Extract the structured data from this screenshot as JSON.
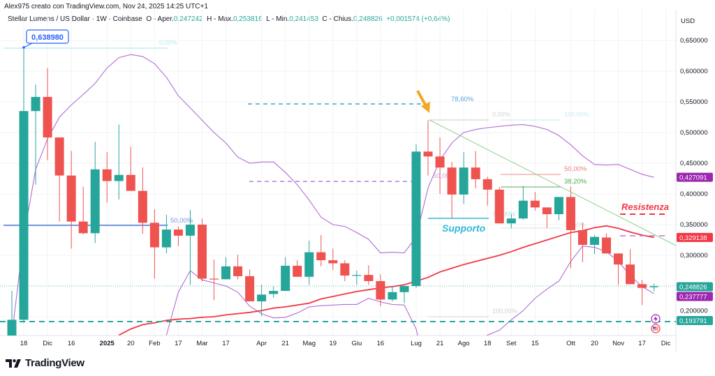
{
  "header": {
    "attribution": "Alex975 creato con TradingView.com, Nov 24, 2025 14:25 UTC+1"
  },
  "legend": {
    "symbol": "Stellar Lumens / US Dollar · 1W · Coinbase",
    "open_label": "O - Aper.",
    "open": "0,247242",
    "high_label": "H - Max.",
    "high": "0,253816",
    "low_label": "L - Min.",
    "low": "0,241453",
    "close_label": "C - Chius.",
    "close": "0,248826",
    "change": "+0,001574 (+0,64%)"
  },
  "colors": {
    "up": "#26a69a",
    "down": "#ef5350",
    "bands": "#b46bd6",
    "ma": "#f23645",
    "trend": "#8fd18a"
  },
  "annotations": {
    "high_callout": "0,638980",
    "fib1_0": "0,00%",
    "fib1_50": "50,00%",
    "fib_786": "78,60%",
    "fib2_0": "0,00%",
    "fib2_100": "100,00%",
    "fib2_50_purple": "50,00%",
    "fib3_50": "50,00%",
    "fib3_382": "38,20%",
    "fib2_mid": "50,00%",
    "fib3_low": "23,60%",
    "fib2_100_low": "100,00%",
    "support": "Supporto",
    "resistance": "Resistenza"
  },
  "price_axis": {
    "currency": "USD",
    "ticks": [
      "0,650000",
      "0,600000",
      "0,550000",
      "0,500000",
      "0,450000",
      "0,400000",
      "0,350000",
      "0,300000",
      "0,200000"
    ],
    "tick_values": [
      0.65,
      0.6,
      0.55,
      0.5,
      0.45,
      0.4,
      0.35,
      0.3,
      0.2
    ],
    "markers": [
      {
        "label": "0,427091",
        "value": 0.427091,
        "color": "#9c27b0"
      },
      {
        "label": "0,329138",
        "value": 0.329138,
        "color": "#f23645"
      },
      {
        "label": "0,248826",
        "value": 0.248826,
        "color": "#26a69a"
      },
      {
        "label": "0,237777",
        "value": 0.237777,
        "color": "#9c27b0"
      },
      {
        "label": "0,193791",
        "value": 0.193791,
        "color": "#26a69a"
      }
    ]
  },
  "time_axis": {
    "labels": [
      "18",
      "Dic",
      "16",
      "2025",
      "20",
      "Feb",
      "17",
      "Mar",
      "17",
      "Apr",
      "21",
      "Mag",
      "19",
      "Giu",
      "16",
      "Lug",
      "21",
      "Ago",
      "18",
      "Set",
      "15",
      "Ott",
      "20",
      "Nov",
      "17",
      "Dic"
    ],
    "label_dates": [
      "2024-11-18",
      "2024-12-02",
      "2024-12-16",
      "2025-01-06",
      "2025-01-20",
      "2025-02-03",
      "2025-02-17",
      "2025-03-03",
      "2025-03-17",
      "2025-04-07",
      "2025-04-21",
      "2025-05-05",
      "2025-05-19",
      "2025-06-02",
      "2025-06-16",
      "2025-07-07",
      "2025-07-21",
      "2025-08-04",
      "2025-08-18",
      "2025-09-01",
      "2025-09-15",
      "2025-10-06",
      "2025-10-20",
      "2025-11-03",
      "2025-11-17",
      "2025-12-01"
    ]
  },
  "footer": {
    "brand": "TradingView"
  },
  "chart_data": {
    "type": "candlestick",
    "interval": "1W",
    "ylim": [
      0.17,
      0.67
    ],
    "y_unit": "USD",
    "grid": true,
    "candles_fields": [
      "date",
      "open",
      "high",
      "low",
      "close"
    ],
    "candles": [
      [
        "2024-11-11",
        0.12,
        0.242,
        0.09,
        0.195
      ],
      [
        "2024-11-18",
        0.195,
        0.639,
        0.19,
        0.535
      ],
      [
        "2024-11-25",
        0.535,
        0.578,
        0.415,
        0.558
      ],
      [
        "2024-12-02",
        0.558,
        0.605,
        0.455,
        0.492
      ],
      [
        "2024-12-09",
        0.492,
        0.492,
        0.355,
        0.43
      ],
      [
        "2024-12-16",
        0.43,
        0.47,
        0.311,
        0.355
      ],
      [
        "2024-12-23",
        0.355,
        0.412,
        0.334,
        0.336
      ],
      [
        "2024-12-30",
        0.336,
        0.485,
        0.32,
        0.44
      ],
      [
        "2025-01-06",
        0.44,
        0.468,
        0.386,
        0.421
      ],
      [
        "2025-01-13",
        0.421,
        0.513,
        0.391,
        0.431
      ],
      [
        "2025-01-20",
        0.431,
        0.477,
        0.405,
        0.405
      ],
      [
        "2025-01-27",
        0.405,
        0.443,
        0.335,
        0.353
      ],
      [
        "2025-02-03",
        0.353,
        0.375,
        0.262,
        0.313
      ],
      [
        "2025-02-10",
        0.313,
        0.366,
        0.303,
        0.342
      ],
      [
        "2025-02-17",
        0.342,
        0.347,
        0.315,
        0.332
      ],
      [
        "2025-02-24",
        0.332,
        0.374,
        0.252,
        0.35
      ],
      [
        "2025-03-03",
        0.35,
        0.36,
        0.258,
        0.262
      ],
      [
        "2025-03-10",
        0.262,
        0.293,
        0.227,
        0.261
      ],
      [
        "2025-03-17",
        0.261,
        0.297,
        0.261,
        0.282
      ],
      [
        "2025-03-24",
        0.282,
        0.301,
        0.261,
        0.266
      ],
      [
        "2025-03-31",
        0.266,
        0.277,
        0.225,
        0.225
      ],
      [
        "2025-04-07",
        0.225,
        0.252,
        0.201,
        0.236
      ],
      [
        "2025-04-14",
        0.237,
        0.249,
        0.231,
        0.242
      ],
      [
        "2025-04-21",
        0.242,
        0.297,
        0.242,
        0.283
      ],
      [
        "2025-04-28",
        0.283,
        0.292,
        0.265,
        0.265
      ],
      [
        "2025-05-05",
        0.265,
        0.324,
        0.252,
        0.305
      ],
      [
        "2025-05-12",
        0.305,
        0.333,
        0.282,
        0.292
      ],
      [
        "2025-05-19",
        0.292,
        0.311,
        0.276,
        0.287
      ],
      [
        "2025-05-26",
        0.287,
        0.292,
        0.258,
        0.267
      ],
      [
        "2025-06-02",
        0.267,
        0.275,
        0.252,
        0.268
      ],
      [
        "2025-06-09",
        0.268,
        0.284,
        0.252,
        0.258
      ],
      [
        "2025-06-16",
        0.258,
        0.269,
        0.217,
        0.228
      ],
      [
        "2025-06-23",
        0.228,
        0.249,
        0.225,
        0.24
      ],
      [
        "2025-06-30",
        0.24,
        0.25,
        0.222,
        0.25
      ],
      [
        "2025-07-07",
        0.25,
        0.481,
        0.247,
        0.469
      ],
      [
        "2025-07-14",
        0.469,
        0.52,
        0.43,
        0.461
      ],
      [
        "2025-07-21",
        0.461,
        0.492,
        0.4,
        0.443
      ],
      [
        "2025-07-28",
        0.443,
        0.452,
        0.36,
        0.399
      ],
      [
        "2025-08-04",
        0.399,
        0.468,
        0.384,
        0.443
      ],
      [
        "2025-08-11",
        0.443,
        0.47,
        0.409,
        0.424
      ],
      [
        "2025-08-18",
        0.424,
        0.428,
        0.381,
        0.407
      ],
      [
        "2025-08-25",
        0.407,
        0.411,
        0.352,
        0.352
      ],
      [
        "2025-09-01",
        0.352,
        0.367,
        0.344,
        0.36
      ],
      [
        "2025-09-08",
        0.36,
        0.413,
        0.358,
        0.389
      ],
      [
        "2025-09-15",
        0.389,
        0.403,
        0.373,
        0.378
      ],
      [
        "2025-09-22",
        0.378,
        0.378,
        0.344,
        0.367
      ],
      [
        "2025-09-29",
        0.367,
        0.395,
        0.357,
        0.395
      ],
      [
        "2025-10-06",
        0.395,
        0.412,
        0.279,
        0.341
      ],
      [
        "2025-10-13",
        0.341,
        0.353,
        0.289,
        0.317
      ],
      [
        "2025-10-20",
        0.317,
        0.333,
        0.302,
        0.33
      ],
      [
        "2025-10-27",
        0.329,
        0.336,
        0.303,
        0.303
      ],
      [
        "2025-11-03",
        0.303,
        0.303,
        0.252,
        0.285
      ],
      [
        "2025-11-10",
        0.285,
        0.31,
        0.253,
        0.253
      ],
      [
        "2025-11-17",
        0.253,
        0.26,
        0.219,
        0.247
      ],
      [
        "2025-11-24",
        0.247242,
        0.253816,
        0.241453,
        0.248826
      ]
    ],
    "upper_band": [
      0.17,
      0.33,
      0.44,
      0.49,
      0.525,
      0.545,
      0.562,
      0.58,
      0.605,
      0.622,
      0.627,
      0.624,
      0.612,
      0.59,
      0.56,
      0.54,
      0.52,
      0.5,
      0.483,
      0.46,
      0.45,
      0.452,
      0.452,
      0.435,
      0.415,
      0.39,
      0.362,
      0.35,
      0.347,
      0.337,
      0.326,
      0.304,
      0.305,
      0.304,
      0.33,
      0.41,
      0.455,
      0.483,
      0.5,
      0.505,
      0.508,
      0.51,
      0.512,
      0.513,
      0.51,
      0.505,
      0.495,
      0.48,
      0.462,
      0.448,
      0.447,
      0.448,
      0.44,
      0.432,
      0.427091
    ],
    "lower_band": [
      null,
      null,
      null,
      null,
      null,
      null,
      null,
      null,
      null,
      null,
      null,
      null,
      null,
      0.17,
      0.24,
      0.275,
      0.26,
      0.255,
      0.25,
      0.24,
      0.217,
      0.205,
      0.198,
      0.199,
      0.206,
      0.216,
      0.218,
      0.219,
      0.22,
      0.22,
      0.23,
      0.224,
      0.22,
      0.219,
      0.18,
      0.1,
      0.08,
      0.09,
      0.12,
      0.15,
      0.17,
      0.178,
      0.195,
      0.21,
      0.23,
      0.245,
      0.258,
      0.29,
      0.315,
      0.313,
      0.306,
      0.29,
      0.267,
      0.249,
      0.237777
    ],
    "moving_average": [
      null,
      null,
      null,
      null,
      null,
      null,
      null,
      null,
      null,
      0.17,
      0.18,
      0.187,
      0.19,
      0.194,
      0.196,
      0.197,
      0.199,
      0.2,
      0.203,
      0.205,
      0.207,
      0.21,
      0.214,
      0.216,
      0.219,
      0.222,
      0.229,
      0.233,
      0.237,
      0.241,
      0.244,
      0.247,
      0.249,
      0.252,
      0.258,
      0.264,
      0.273,
      0.279,
      0.285,
      0.29,
      0.295,
      0.3,
      0.306,
      0.313,
      0.319,
      0.325,
      0.331,
      0.337,
      0.34,
      0.345,
      0.348,
      0.344,
      0.338,
      0.333,
      0.329138
    ],
    "horizontal_levels": {
      "high": 0.63898,
      "fib_50": 0.349,
      "fib_786": 0.546,
      "purple_dashed": 0.42,
      "support_line": 0.193791,
      "resistance": 0.355,
      "purple_right": 0.329
    }
  }
}
